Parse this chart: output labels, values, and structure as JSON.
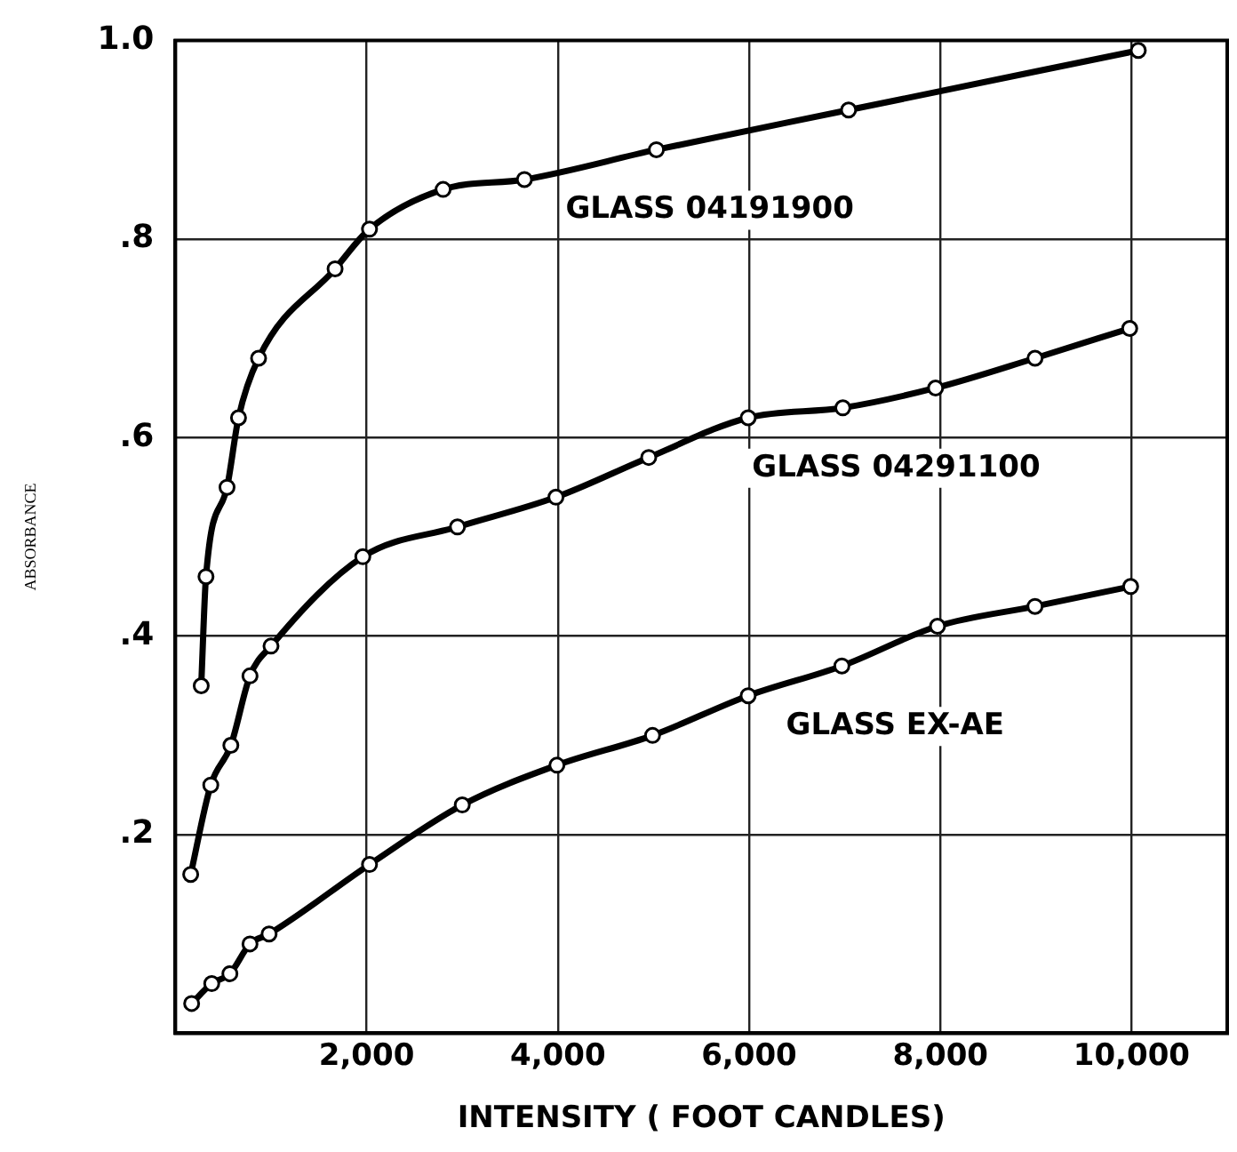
{
  "chart_data": {
    "type": "line",
    "xlabel": "INTENSITY ( FOOT CANDLES)",
    "ylabel": "ABSORBANCE",
    "xlim": [
      0,
      11000
    ],
    "ylim": [
      0,
      1.0
    ],
    "xticks": [
      {
        "value": 2000,
        "label": "2,000"
      },
      {
        "value": 4000,
        "label": "4,000"
      },
      {
        "value": 6000,
        "label": "6,000"
      },
      {
        "value": 8000,
        "label": "8,000"
      },
      {
        "value": 10000,
        "label": "10,000"
      }
    ],
    "yticks": [
      {
        "value": 0,
        "label": null
      },
      {
        "value": 0.2,
        "label": ".2"
      },
      {
        "value": 0.4,
        "label": ".4"
      },
      {
        "value": 0.6,
        "label": ".6"
      },
      {
        "value": 0.8,
        "label": ".8"
      },
      {
        "value": 1.0,
        "label": "1.0"
      }
    ],
    "grid": true,
    "legend": false,
    "marker": "circle",
    "line_style": "solid",
    "series": [
      {
        "name": "GLASS 04191900",
        "color": "#000000",
        "x": [
          270,
          320,
          540,
          660,
          870,
          1670,
          2030,
          2800,
          3650,
          5030,
          7040,
          10070
        ],
        "values": [
          0.35,
          0.46,
          0.55,
          0.62,
          0.68,
          0.77,
          0.81,
          0.85,
          0.86,
          0.89,
          0.93,
          0.99
        ]
      },
      {
        "name": "GLASS 04291100",
        "color": "#000000",
        "x": [
          160,
          370,
          580,
          780,
          1000,
          1960,
          2950,
          3980,
          4950,
          5990,
          6980,
          7950,
          8990,
          9980
        ],
        "values": [
          0.16,
          0.25,
          0.29,
          0.36,
          0.39,
          0.48,
          0.51,
          0.54,
          0.58,
          0.62,
          0.63,
          0.65,
          0.68,
          0.71
        ]
      },
      {
        "name": "GLASS EX-AE",
        "color": "#000000",
        "x": [
          170,
          380,
          570,
          780,
          980,
          2030,
          3000,
          3990,
          4990,
          5990,
          6970,
          7970,
          8990,
          9990
        ],
        "values": [
          0.03,
          0.05,
          0.06,
          0.09,
          0.1,
          0.17,
          0.23,
          0.27,
          0.3,
          0.34,
          0.37,
          0.41,
          0.43,
          0.45
        ]
      }
    ]
  }
}
